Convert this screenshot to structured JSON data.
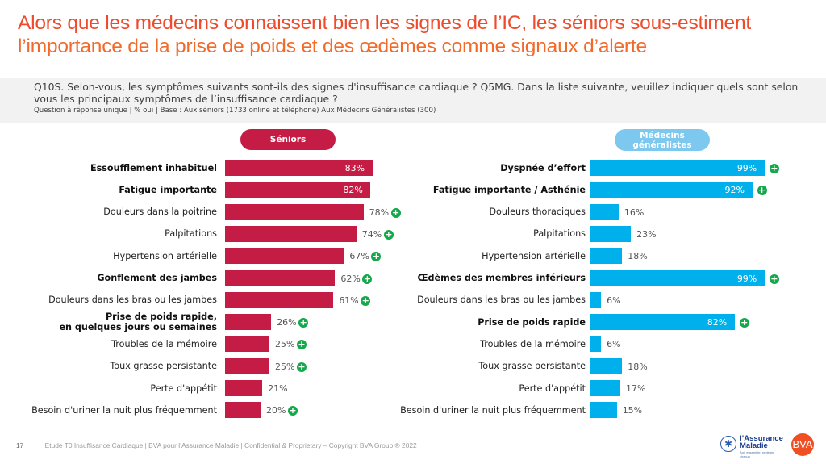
{
  "title": {
    "line1": "Alors que les médecins connaissent bien les signes de l’IC, les séniors sous-estiment",
    "line2": "l’importance de la prise de poids et des œdèmes comme signaux d’alerte"
  },
  "question": {
    "text": "Q10S. Selon-vous, les symptômes suivants sont-ils des signes d'insuffisance cardiaque ? Q5MG. Dans la liste suivante, veuillez indiquer quels sont selon vous les principaux symptômes de l’insuffisance cardiaque ?",
    "subtext": "Question à réponse unique | % oui | Base : Aux séniors (1733 online et téléphone) Aux Médecins Généralistes (300)"
  },
  "colors": {
    "seniors": "#c51c45",
    "medecins": "#00b0ec",
    "plus": "#13a84a",
    "title": "#f04e23"
  },
  "chart_data": [
    {
      "type": "bar",
      "orientation": "horizontal",
      "title": "Séniors",
      "xlabel": "",
      "ylabel": "",
      "xlim": [
        0,
        100
      ],
      "unit": "%",
      "grid": false,
      "categories": [
        "Essoufflement inhabituel",
        "Fatigue importante",
        "Douleurs dans la poitrine",
        "Palpitations",
        "Hypertension artérielle",
        "Gonflement des jambes",
        "Douleurs dans les bras ou les jambes",
        "Prise de poids rapide,\nen quelques jours ou semaines",
        "Troubles de la mémoire",
        "Toux grasse persistante",
        "Perte d'appétit",
        "Besoin d'uriner la nuit plus fréquemment"
      ],
      "values": [
        83,
        82,
        78,
        74,
        67,
        62,
        61,
        26,
        25,
        25,
        21,
        20
      ],
      "labels": [
        "83%",
        "82%",
        "78%",
        "74%",
        "67%",
        "62%",
        "61%",
        "26%",
        "25%",
        "25%",
        "21%",
        "20%"
      ],
      "bold": [
        true,
        true,
        false,
        false,
        false,
        true,
        false,
        true,
        false,
        false,
        false,
        false
      ],
      "significant_plus": [
        false,
        false,
        true,
        true,
        true,
        true,
        true,
        true,
        true,
        true,
        false,
        true
      ]
    },
    {
      "type": "bar",
      "orientation": "horizontal",
      "title": "Médecins généralistes",
      "xlabel": "",
      "ylabel": "",
      "xlim": [
        0,
        100
      ],
      "unit": "%",
      "grid": false,
      "categories": [
        "Dyspnée d’effort",
        "Fatigue importante / Asthénie",
        "Douleurs thoraciques",
        "Palpitations",
        "Hypertension artérielle",
        "Œdèmes des membres inférieurs",
        "Douleurs dans les bras ou les jambes",
        "Prise de poids rapide",
        "Troubles de la mémoire",
        "Toux grasse persistante",
        "Perte d'appétit",
        "Besoin d'uriner la nuit plus fréquemment"
      ],
      "values": [
        99,
        92,
        16,
        23,
        18,
        99,
        6,
        82,
        6,
        18,
        17,
        15
      ],
      "labels": [
        "99%",
        "92%",
        "16%",
        "23%",
        "18%",
        "99%",
        "6%",
        "82%",
        "6%",
        "18%",
        "17%",
        "15%"
      ],
      "bold": [
        true,
        true,
        false,
        false,
        false,
        true,
        false,
        true,
        false,
        false,
        false,
        false
      ],
      "significant_plus": [
        true,
        true,
        false,
        false,
        false,
        true,
        false,
        true,
        false,
        false,
        false,
        false
      ]
    }
  ],
  "groups": {
    "seniors_label": "Séniors",
    "medecins_label": "Médecins\ngénéralistes"
  },
  "plus_glyph": "+",
  "footer": {
    "page": "17",
    "text": "Etude T0 Insuffisance Cardiaque | BVA pour l’Assurance Maladie | Confidential & Proprietary – Copyright BVA Group ®  2022"
  },
  "logos": {
    "assurance_line1": "l’Assurance",
    "assurance_line2": "Maladie",
    "assurance_tagline": "Agir ensemble, protéger chacun",
    "bva": "BVA"
  }
}
